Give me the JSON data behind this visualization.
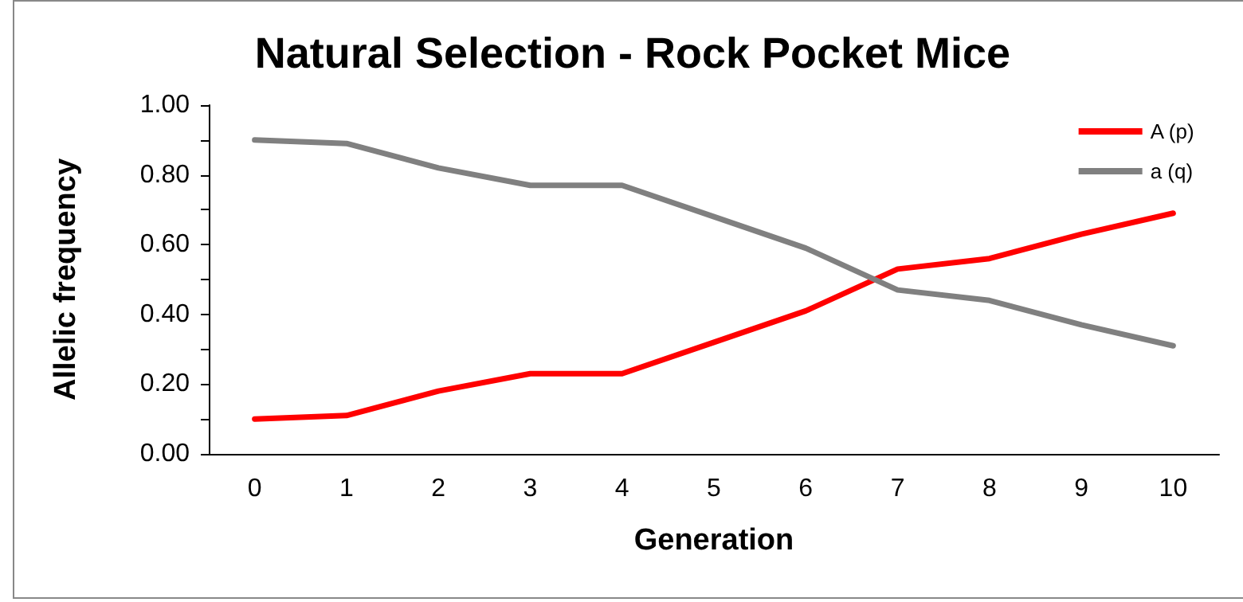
{
  "chart_data": {
    "type": "line",
    "title": "Natural Selection - Rock Pocket Mice",
    "xlabel": "Generation",
    "ylabel": "Allelic frequency",
    "categories": [
      "0",
      "1",
      "2",
      "3",
      "4",
      "5",
      "6",
      "7",
      "8",
      "9",
      "10"
    ],
    "series": [
      {
        "name": "A (p)",
        "color": "#ff0000",
        "values": [
          0.1,
          0.11,
          0.18,
          0.23,
          0.23,
          0.32,
          0.41,
          0.53,
          0.56,
          0.63,
          0.69
        ]
      },
      {
        "name": "a (q)",
        "color": "#808080",
        "values": [
          0.9,
          0.89,
          0.82,
          0.77,
          0.77,
          0.68,
          0.59,
          0.47,
          0.44,
          0.37,
          0.31
        ]
      }
    ],
    "ylim": [
      0,
      1
    ],
    "yticks": [
      {
        "value": 0,
        "label": "0.00"
      },
      {
        "value": 0.1,
        "label": null
      },
      {
        "value": 0.2,
        "label": "0.20"
      },
      {
        "value": 0.3,
        "label": null
      },
      {
        "value": 0.4,
        "label": "0.40"
      },
      {
        "value": 0.5,
        "label": null
      },
      {
        "value": 0.6,
        "label": "0.60"
      },
      {
        "value": 0.7,
        "label": null
      },
      {
        "value": 0.8,
        "label": "0.80"
      },
      {
        "value": 0.9,
        "label": null
      },
      {
        "value": 1,
        "label": "1.00"
      }
    ],
    "grid": false,
    "legend": "top right",
    "marker": "none",
    "line_style": "solid"
  }
}
